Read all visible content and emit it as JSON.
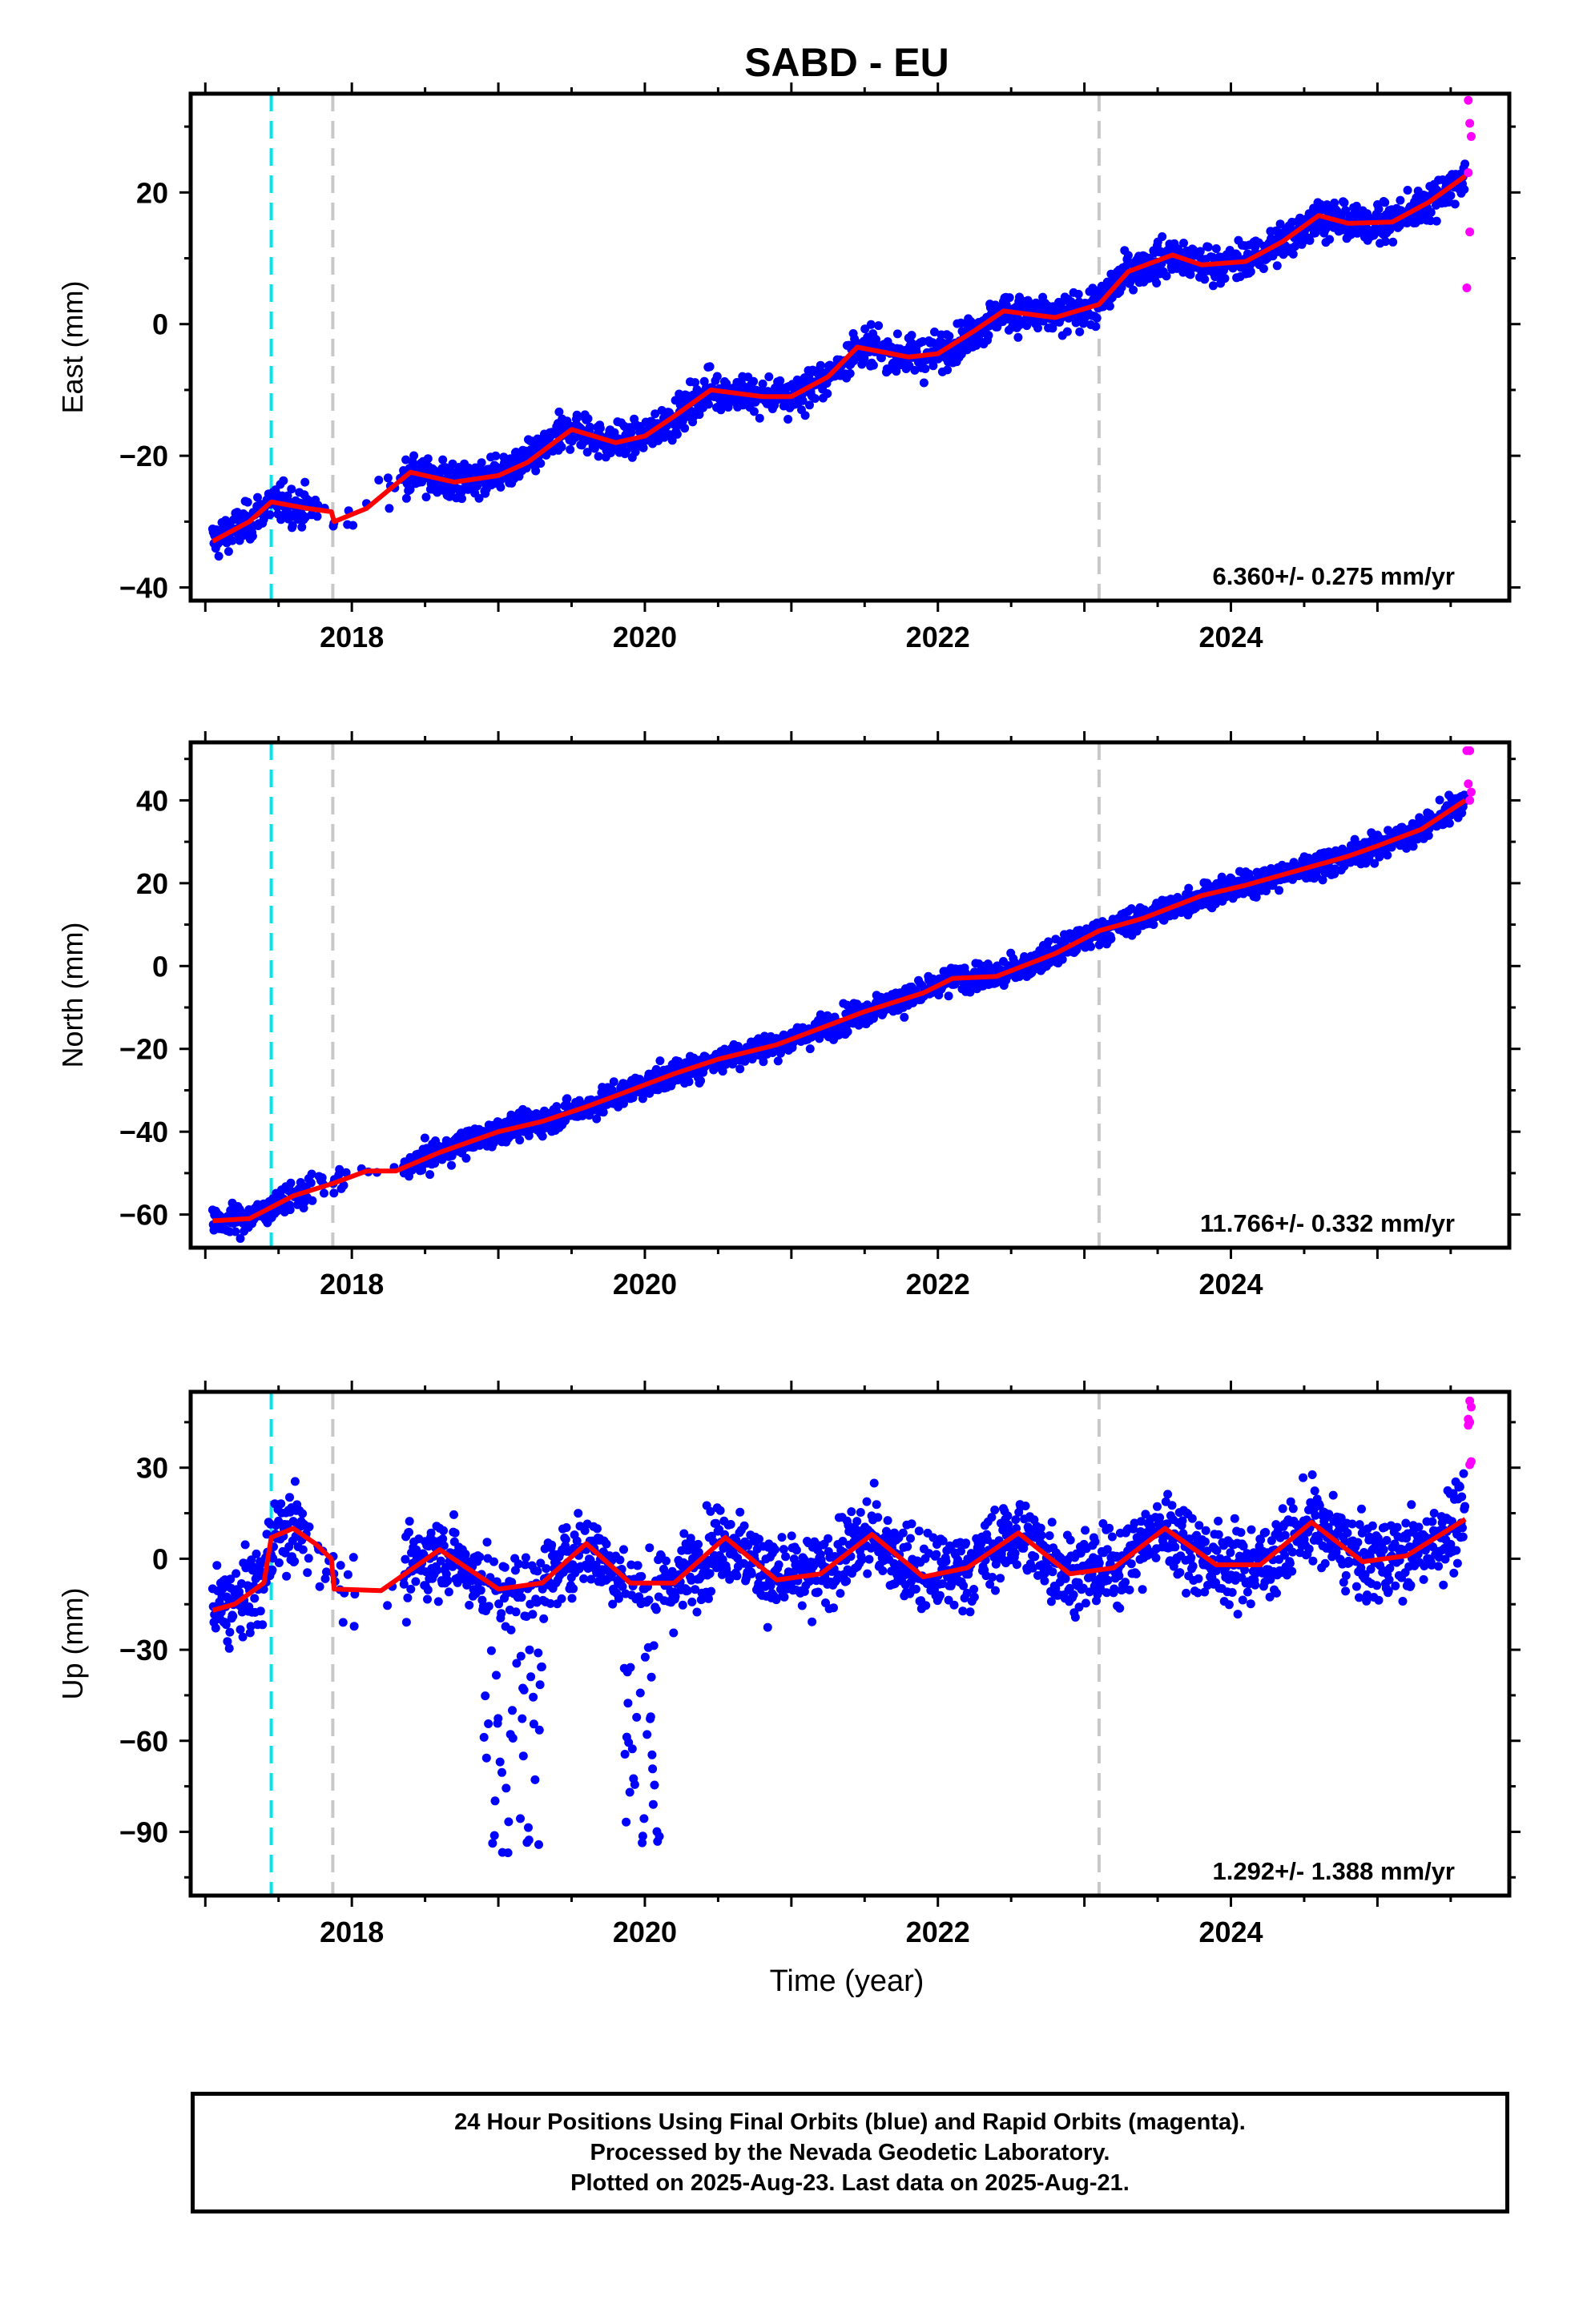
{
  "title": "SABD - EU",
  "xlabel": "Time (year)",
  "footer": {
    "line1": "24 Hour Positions Using Final Orbits (blue) and Rapid Orbits (magenta).",
    "line2": "Processed by the Nevada Geodetic Laboratory.",
    "line3": "Plotted on 2025-Aug-23. Last data on 2025-Aug-21."
  },
  "colors": {
    "final_orbits": "#0000ff",
    "rapid_orbits": "#ff00ff",
    "model_fit": "#ff0000",
    "antenna_change_line": "#00e5ee",
    "equipment_change_line": "#c8c8c8"
  },
  "chart_data": [
    {
      "type": "scatter",
      "panel": "east",
      "ylabel": "East (mm)",
      "xlim": [
        2016.9,
        2025.9
      ],
      "ylim": [
        -42,
        35
      ],
      "xticks": [
        2018,
        2020,
        2022,
        2024
      ],
      "yticks": [
        -40,
        -20,
        0,
        20
      ],
      "rate_label": "6.360+/- 0.275 mm/yr",
      "rate_mm_yr": 6.36,
      "rate_sigma": 0.275,
      "start_value": -33,
      "annual_amplitude": 2.6,
      "offsets": [
        {
          "year": 2017.87,
          "value": 1.2
        }
      ],
      "fit_curve": {
        "x": [
          2017.05,
          2017.3,
          2017.45,
          2017.7,
          2017.86,
          2017.88,
          2018.1,
          2018.4,
          2018.7,
          2019.0,
          2019.2,
          2019.5,
          2019.8,
          2020.0,
          2020.2,
          2020.45,
          2020.8,
          2021.0,
          2021.25,
          2021.45,
          2021.8,
          2022.0,
          2022.25,
          2022.45,
          2022.8,
          2023.1,
          2023.3,
          2023.6,
          2023.8,
          2024.1,
          2024.35,
          2024.6,
          2024.8,
          2025.1,
          2025.35,
          2025.6
        ],
        "y": [
          -33,
          -30,
          -27,
          -28,
          -28.5,
          -30,
          -28,
          -22.5,
          -24,
          -23,
          -21,
          -16,
          -18,
          -17,
          -14,
          -10,
          -11,
          -11,
          -8,
          -3.5,
          -5,
          -4.5,
          -1,
          2,
          1,
          3,
          8,
          10.5,
          9,
          9.5,
          12.5,
          16.5,
          15.3,
          15.5,
          18.5,
          22.5
        ]
      },
      "rapid_points": {
        "x": [
          2025.62,
          2025.63,
          2025.64,
          2025.62,
          2025.63,
          2025.61
        ],
        "y": [
          34,
          30.5,
          28.5,
          23,
          14,
          5.5
        ]
      },
      "event_lines": [
        {
          "x": 2017.45,
          "kind": "antenna_change"
        },
        {
          "x": 2017.87,
          "kind": "equipment_change"
        },
        {
          "x": 2023.1,
          "kind": "equipment_change"
        }
      ]
    },
    {
      "type": "scatter",
      "panel": "north",
      "ylabel": "North (mm)",
      "xlim": [
        2016.9,
        2025.9
      ],
      "ylim": [
        -68,
        54
      ],
      "xticks": [
        2018,
        2020,
        2022,
        2024
      ],
      "yticks": [
        -60,
        -40,
        -20,
        0,
        20,
        40
      ],
      "rate_label": "11.766+/- 0.332 mm/yr",
      "rate_mm_yr": 11.766,
      "rate_sigma": 0.332,
      "start_value": -61.5,
      "annual_amplitude": 1.5,
      "offsets": [],
      "fit_curve": {
        "x": [
          2017.05,
          2017.3,
          2017.6,
          2017.87,
          2018.1,
          2018.3,
          2018.6,
          2019.0,
          2019.3,
          2019.6,
          2019.9,
          2020.2,
          2020.5,
          2020.9,
          2021.2,
          2021.5,
          2021.9,
          2022.1,
          2022.4,
          2022.8,
          2023.1,
          2023.4,
          2023.8,
          2024.1,
          2024.4,
          2024.8,
          2025.0,
          2025.3,
          2025.6
        ],
        "y": [
          -61.5,
          -61,
          -55.5,
          -52.5,
          -49.5,
          -49.5,
          -45,
          -40,
          -37.5,
          -34,
          -30,
          -26,
          -22.5,
          -19,
          -15,
          -11,
          -6.5,
          -3,
          -2.5,
          3,
          8.5,
          11.5,
          17,
          19.5,
          22.5,
          26.5,
          29,
          33,
          40
        ]
      },
      "rapid_points": {
        "x": [
          2025.61,
          2025.63,
          2025.62,
          2025.64,
          2025.63
        ],
        "y": [
          52,
          52,
          44,
          42,
          40
        ]
      },
      "event_lines": [
        {
          "x": 2017.45,
          "kind": "antenna_change"
        },
        {
          "x": 2017.87,
          "kind": "equipment_change"
        },
        {
          "x": 2023.1,
          "kind": "equipment_change"
        }
      ]
    },
    {
      "type": "scatter",
      "panel": "up",
      "ylabel": "Up (mm)",
      "xlim": [
        2016.9,
        2025.9
      ],
      "ylim": [
        -111,
        55
      ],
      "xticks": [
        2018,
        2020,
        2022,
        2024
      ],
      "yticks": [
        -90,
        -60,
        -30,
        0,
        30
      ],
      "rate_label": "1.292+/- 1.388 mm/yr",
      "rate_mm_yr": 1.292,
      "rate_sigma": 1.388,
      "start_value": -17,
      "annual_amplitude": 7.5,
      "offsets": [
        {
          "year": 2017.45,
          "value": 14
        },
        {
          "year": 2017.87,
          "value": -12
        }
      ],
      "fit_curve": {
        "x": [
          2017.05,
          2017.2,
          2017.4,
          2017.45,
          2017.6,
          2017.75,
          2017.86,
          2017.88,
          2018.2,
          2018.6,
          2019.0,
          2019.3,
          2019.6,
          2019.9,
          2020.2,
          2020.55,
          2020.9,
          2021.2,
          2021.55,
          2021.9,
          2022.2,
          2022.55,
          2022.9,
          2023.2,
          2023.55,
          2023.9,
          2024.2,
          2024.55,
          2024.9,
          2025.2,
          2025.6
        ],
        "y": [
          -17,
          -15,
          -8,
          7,
          10,
          5,
          0,
          -10,
          -10.5,
          3,
          -10,
          -8,
          5,
          -8,
          -8,
          7,
          -7,
          -5,
          8,
          -6,
          -3,
          8.5,
          -5,
          -3,
          10,
          -2,
          -2,
          12,
          -1,
          1,
          13
        ]
      },
      "rapid_points": {
        "x": [
          2025.63,
          2025.64,
          2025.62,
          2025.63,
          2025.62,
          2025.64,
          2025.63
        ],
        "y": [
          52,
          50,
          46,
          45,
          44,
          32,
          31
        ]
      },
      "event_lines": [
        {
          "x": 2017.45,
          "kind": "antenna_change"
        },
        {
          "x": 2017.87,
          "kind": "equipment_change"
        },
        {
          "x": 2023.1,
          "kind": "equipment_change"
        }
      ]
    }
  ]
}
